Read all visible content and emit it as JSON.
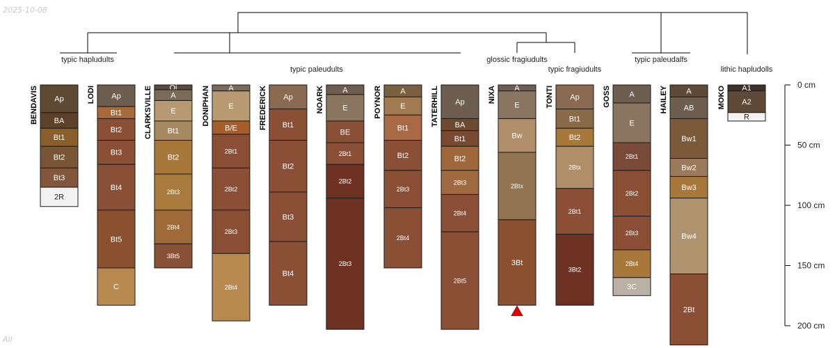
{
  "date_stamp": "2025-10-08",
  "footer_label": "All",
  "depth_axis": {
    "unit": "cm",
    "ticks": [
      {
        "depth": 0,
        "label": "0 cm"
      },
      {
        "depth": 50,
        "label": "50 cm"
      },
      {
        "depth": 100,
        "label": "100 cm"
      },
      {
        "depth": 150,
        "label": "150 cm"
      },
      {
        "depth": 200,
        "label": "200 cm"
      }
    ]
  },
  "groups": [
    {
      "label": "typic hapludults"
    },
    {
      "label": "typic paleudults"
    },
    {
      "label": "glossic fragiudults"
    },
    {
      "label": "typic fragiudults"
    },
    {
      "label": "typic paleudalfs"
    },
    {
      "label": "lithic hapludolls"
    }
  ],
  "profiles": [
    {
      "name": "BENDAVIS",
      "horizons": [
        {
          "name": "Ap",
          "top": 0,
          "bottom": 23,
          "color": "#5e4a33"
        },
        {
          "name": "BA",
          "top": 23,
          "bottom": 36,
          "color": "#5c4229"
        },
        {
          "name": "Bt1",
          "top": 36,
          "bottom": 51,
          "color": "#8a5e2a"
        },
        {
          "name": "Bt2",
          "top": 51,
          "bottom": 69,
          "color": "#7a5535"
        },
        {
          "name": "Bt3",
          "top": 69,
          "bottom": 85,
          "color": "#82563a"
        },
        {
          "name": "2R",
          "top": 85,
          "bottom": 101,
          "color": "#f2f2f2"
        }
      ]
    },
    {
      "name": "LODI",
      "horizons": [
        {
          "name": "Ap",
          "top": 0,
          "bottom": 18,
          "color": "#6e5e50"
        },
        {
          "name": "Bt1",
          "top": 18,
          "bottom": 28,
          "color": "#a86a3a"
        },
        {
          "name": "Bt2",
          "top": 28,
          "bottom": 46,
          "color": "#8a4f34"
        },
        {
          "name": "Bt3",
          "top": 46,
          "bottom": 66,
          "color": "#8a4f34"
        },
        {
          "name": "Bt4",
          "top": 66,
          "bottom": 104,
          "color": "#8a5035"
        },
        {
          "name": "Bt5",
          "top": 104,
          "bottom": 152,
          "color": "#8a5030"
        },
        {
          "name": "C",
          "top": 152,
          "bottom": 183,
          "color": "#b88a50"
        }
      ]
    },
    {
      "name": "CLARKSVILLE",
      "horizons": [
        {
          "name": "Oi",
          "top": 0,
          "bottom": 4,
          "color": "#5a4a3a"
        },
        {
          "name": "A",
          "top": 4,
          "bottom": 13,
          "color": "#7a6a58"
        },
        {
          "name": "E",
          "top": 13,
          "bottom": 30,
          "color": "#b89a72"
        },
        {
          "name": "Bt1",
          "top": 30,
          "bottom": 46,
          "color": "#a88a62"
        },
        {
          "name": "Bt2",
          "top": 46,
          "bottom": 74,
          "color": "#a8783a"
        },
        {
          "name": "2Bt3",
          "top": 74,
          "bottom": 104,
          "color": "#a87a3c"
        },
        {
          "name": "2Bt4",
          "top": 104,
          "bottom": 132,
          "color": "#a06a38"
        },
        {
          "name": "3Bt5",
          "top": 132,
          "bottom": 152,
          "color": "#8a5035"
        }
      ]
    },
    {
      "name": "DONIPHAN",
      "horizons": [
        {
          "name": "A",
          "top": 0,
          "bottom": 5,
          "color": "#7a6a58"
        },
        {
          "name": "E",
          "top": 5,
          "bottom": 30,
          "color": "#b89a72"
        },
        {
          "name": "B/E",
          "top": 30,
          "bottom": 41,
          "color": "#a85e2a"
        },
        {
          "name": "2Bt1",
          "top": 41,
          "bottom": 69,
          "color": "#8a4f34"
        },
        {
          "name": "2Bt2",
          "top": 69,
          "bottom": 104,
          "color": "#8a4f34"
        },
        {
          "name": "2Bt3",
          "top": 104,
          "bottom": 140,
          "color": "#8a4f34"
        },
        {
          "name": "2Bt4",
          "top": 140,
          "bottom": 196,
          "color": "#b88a50"
        }
      ]
    },
    {
      "name": "FREDERICK",
      "horizons": [
        {
          "name": "Ap",
          "top": 0,
          "bottom": 20,
          "color": "#8a6a50"
        },
        {
          "name": "Bt1",
          "top": 20,
          "bottom": 46,
          "color": "#8a4f34"
        },
        {
          "name": "Bt2",
          "top": 46,
          "bottom": 89,
          "color": "#8a4f34"
        },
        {
          "name": "Bt3",
          "top": 89,
          "bottom": 130,
          "color": "#8a4f34"
        },
        {
          "name": "Bt4",
          "top": 130,
          "bottom": 183,
          "color": "#8a4f34"
        }
      ]
    },
    {
      "name": "NOARK",
      "horizons": [
        {
          "name": "A",
          "top": 0,
          "bottom": 8,
          "color": "#6e5e50"
        },
        {
          "name": "E",
          "top": 8,
          "bottom": 30,
          "color": "#8a7660"
        },
        {
          "name": "BE",
          "top": 30,
          "bottom": 48,
          "color": "#8a5035"
        },
        {
          "name": "2Bt1",
          "top": 48,
          "bottom": 66,
          "color": "#8a4f34"
        },
        {
          "name": "2Bt2",
          "top": 66,
          "bottom": 94,
          "color": "#6e3222"
        },
        {
          "name": "2Bt3",
          "top": 94,
          "bottom": 203,
          "color": "#6e3222"
        }
      ]
    },
    {
      "name": "POYNOR",
      "horizons": [
        {
          "name": "A",
          "top": 0,
          "bottom": 10,
          "color": "#7a6040"
        },
        {
          "name": "E",
          "top": 10,
          "bottom": 25,
          "color": "#a07a50"
        },
        {
          "name": "Bt1",
          "top": 25,
          "bottom": 46,
          "color": "#a86a45"
        },
        {
          "name": "Bt2",
          "top": 46,
          "bottom": 71,
          "color": "#8a5035"
        },
        {
          "name": "2Bt3",
          "top": 71,
          "bottom": 102,
          "color": "#8a4f34"
        },
        {
          "name": "2Bt4",
          "top": 102,
          "bottom": 152,
          "color": "#8a4f34"
        }
      ]
    },
    {
      "name": "TATERHILL",
      "horizons": [
        {
          "name": "Ap",
          "top": 0,
          "bottom": 28,
          "color": "#6e5e50"
        },
        {
          "name": "BA",
          "top": 28,
          "bottom": 38,
          "color": "#6e4a30"
        },
        {
          "name": "Bt1",
          "top": 38,
          "bottom": 51,
          "color": "#7a4a30"
        },
        {
          "name": "Bt2",
          "top": 51,
          "bottom": 71,
          "color": "#a0683a"
        },
        {
          "name": "2Bt3",
          "top": 71,
          "bottom": 91,
          "color": "#a06a40"
        },
        {
          "name": "2Bt4",
          "top": 91,
          "bottom": 122,
          "color": "#8a4f34"
        },
        {
          "name": "2Bt5",
          "top": 122,
          "bottom": 203,
          "color": "#8a4f34"
        }
      ]
    },
    {
      "name": "NIXA",
      "marker": true,
      "horizons": [
        {
          "name": "A",
          "top": 0,
          "bottom": 5,
          "color": "#6e5e50"
        },
        {
          "name": "E",
          "top": 5,
          "bottom": 28,
          "color": "#8a7660"
        },
        {
          "name": "Bw",
          "top": 28,
          "bottom": 56,
          "color": "#b08e68"
        },
        {
          "name": "2Btx",
          "top": 56,
          "bottom": 112,
          "color": "#927452"
        },
        {
          "name": "3Bt",
          "top": 112,
          "bottom": 183,
          "color": "#8a5030"
        }
      ]
    },
    {
      "name": "TONTI",
      "horizons": [
        {
          "name": "Ap",
          "top": 0,
          "bottom": 20,
          "color": "#8a6a50"
        },
        {
          "name": "Bt1",
          "top": 20,
          "bottom": 36,
          "color": "#8a6a48"
        },
        {
          "name": "Bt2",
          "top": 36,
          "bottom": 51,
          "color": "#a8783a"
        },
        {
          "name": "2Btx",
          "top": 51,
          "bottom": 86,
          "color": "#b08e68"
        },
        {
          "name": "2Bt1",
          "top": 86,
          "bottom": 124,
          "color": "#8a4f34"
        },
        {
          "name": "3Bt2",
          "top": 124,
          "bottom": 183,
          "color": "#6e3222"
        }
      ]
    },
    {
      "name": "GOSS",
      "horizons": [
        {
          "name": "A",
          "top": 0,
          "bottom": 15,
          "color": "#6e5e50"
        },
        {
          "name": "E",
          "top": 15,
          "bottom": 48,
          "color": "#8a7660"
        },
        {
          "name": "2Bt1",
          "top": 48,
          "bottom": 71,
          "color": "#7a4a38"
        },
        {
          "name": "2Bt2",
          "top": 71,
          "bottom": 109,
          "color": "#8a4f34"
        },
        {
          "name": "2Bt3",
          "top": 109,
          "bottom": 137,
          "color": "#8a4f34"
        },
        {
          "name": "2Bt4",
          "top": 137,
          "bottom": 160,
          "color": "#a8783a"
        },
        {
          "name": "3C",
          "top": 160,
          "bottom": 175,
          "color": "#bab0a4"
        }
      ]
    },
    {
      "name": "HAILEY",
      "horizons": [
        {
          "name": "A",
          "top": 0,
          "bottom": 10,
          "color": "#5e4a36"
        },
        {
          "name": "AB",
          "top": 10,
          "bottom": 28,
          "color": "#6e5e50"
        },
        {
          "name": "Bw1",
          "top": 28,
          "bottom": 61,
          "color": "#7a5a38"
        },
        {
          "name": "Bw2",
          "top": 61,
          "bottom": 76,
          "color": "#9a7a5a"
        },
        {
          "name": "Bw3",
          "top": 76,
          "bottom": 94,
          "color": "#a8783a"
        },
        {
          "name": "Bw4",
          "top": 94,
          "bottom": 157,
          "color": "#b09470"
        },
        {
          "name": "2Bt",
          "top": 157,
          "bottom": 216,
          "color": "#8a4f34"
        }
      ]
    },
    {
      "name": "MOKO",
      "horizons": [
        {
          "name": "A1",
          "top": 0,
          "bottom": 5,
          "color": "#3e3226"
        },
        {
          "name": "A2",
          "top": 5,
          "bottom": 23,
          "color": "#5e4a36"
        },
        {
          "name": "R",
          "top": 23,
          "bottom": 30,
          "color": "#f2f2f2"
        }
      ]
    }
  ]
}
